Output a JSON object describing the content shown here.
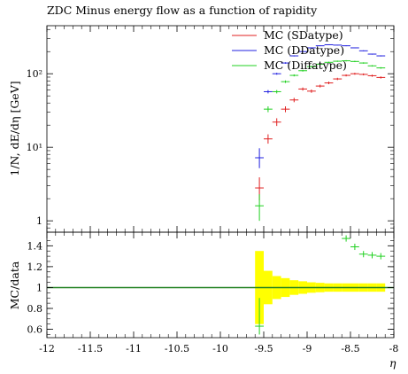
{
  "chart_data": {
    "type": "scatter",
    "title": "ZDC Minus energy flow as a function of rapidity",
    "xlabel": "η",
    "xlim": [
      -12,
      -8
    ],
    "x_ticks": [
      -12,
      -11.5,
      -11,
      -10.5,
      -10,
      -9.5,
      -9,
      -8.5,
      -8
    ],
    "x_tick_labels": [
      "-12",
      "-11.5",
      "-11",
      "-10.5",
      "-10",
      "-9.5",
      "-9",
      "-8.5",
      "-8"
    ],
    "top": {
      "ylabel": "1/N, dE/dη [GeV]",
      "yscale": "log",
      "ylim": [
        0.7,
        450
      ],
      "y_ticks": [
        1,
        10,
        100
      ],
      "y_tick_labels": [
        "1",
        "10¹",
        "10²"
      ],
      "legend_position": "top-right",
      "bin_width": 0.1,
      "series": [
        {
          "name": "MC (SDatype)",
          "color": "#e02020",
          "x": [
            -9.55,
            -9.45,
            -9.35,
            -9.25,
            -9.15,
            -9.05,
            -8.95,
            -8.85,
            -8.75,
            -8.65,
            -8.55,
            -8.45,
            -8.35,
            -8.25,
            -8.15
          ],
          "y": [
            2.8,
            13,
            22,
            33,
            44,
            62,
            58,
            68,
            75,
            85,
            95,
            100,
            98,
            94,
            89
          ],
          "yerr_lo": [
            0.9,
            1.8,
            2.5,
            3,
            3,
            3,
            3,
            3,
            3,
            3,
            3,
            3,
            3,
            3,
            3
          ],
          "yerr_hi": [
            1.1,
            2.0,
            2.8,
            3,
            3,
            3,
            3,
            3,
            3,
            3,
            3,
            3,
            3,
            3,
            3
          ]
        },
        {
          "name": "MC (DDatype)",
          "color": "#2020e0",
          "x": [
            -9.55,
            -9.45,
            -9.35,
            -9.25,
            -9.15,
            -9.05,
            -8.95,
            -8.85,
            -8.75,
            -8.65,
            -8.55,
            -8.45,
            -8.35,
            -8.25,
            -8.15
          ],
          "y": [
            7.2,
            57,
            100,
            140,
            175,
            200,
            225,
            240,
            248,
            245,
            240,
            225,
            205,
            185,
            175
          ],
          "yerr_lo": [
            2,
            3,
            3,
            3,
            3,
            3,
            3,
            3,
            3,
            3,
            3,
            3,
            3,
            3,
            3
          ],
          "yerr_hi": [
            2.5,
            3,
            3,
            3,
            3,
            3,
            3,
            3,
            3,
            3,
            3,
            3,
            3,
            3,
            3
          ]
        },
        {
          "name": "MC (Diffatype)",
          "color": "#20d020",
          "x": [
            -9.55,
            -9.45,
            -9.35,
            -9.25,
            -9.15,
            -9.05,
            -8.95,
            -8.85,
            -8.75,
            -8.65,
            -8.55,
            -8.45,
            -8.35,
            -8.25,
            -8.15
          ],
          "y": [
            1.6,
            33,
            57,
            78,
            95,
            110,
            125,
            135,
            143,
            148,
            150,
            147,
            140,
            128,
            120
          ],
          "yerr_lo": [
            0.6,
            3,
            3,
            3,
            3,
            3,
            3,
            3,
            3,
            3,
            3,
            3,
            3,
            3,
            3
          ],
          "yerr_hi": [
            0.7,
            3,
            3,
            3,
            3,
            3,
            3,
            3,
            3,
            3,
            3,
            3,
            3,
            3,
            3
          ]
        }
      ]
    },
    "bottom": {
      "ylabel": "MC/data",
      "ylim": [
        0.52,
        1.53
      ],
      "y_ticks": [
        0.6,
        0.8,
        1,
        1.2,
        1.4
      ],
      "y_tick_labels": [
        "0.6",
        "0.8",
        "1",
        "1.2",
        "1.4"
      ],
      "reference_line": 1.0,
      "reference_color": "#208020",
      "band_color": "#ffff00",
      "band": {
        "x_lo": [
          -9.6,
          -9.5,
          -9.4,
          -9.3,
          -9.2,
          -9.1,
          -9.0,
          -8.9,
          -8.8,
          -8.7,
          -8.6,
          -8.5,
          -8.4,
          -8.3,
          -8.2
        ],
        "x_hi": [
          -9.5,
          -9.4,
          -9.3,
          -9.2,
          -9.1,
          -9.0,
          -8.9,
          -8.8,
          -8.7,
          -8.6,
          -8.5,
          -8.4,
          -8.3,
          -8.2,
          -8.1
        ],
        "lo": [
          0.65,
          0.84,
          0.89,
          0.91,
          0.93,
          0.94,
          0.95,
          0.955,
          0.96,
          0.96,
          0.96,
          0.96,
          0.96,
          0.96,
          0.96
        ],
        "hi": [
          1.35,
          1.16,
          1.11,
          1.09,
          1.07,
          1.06,
          1.05,
          1.045,
          1.04,
          1.04,
          1.04,
          1.04,
          1.04,
          1.04,
          1.04
        ]
      },
      "series": [
        {
          "color": "#20d020",
          "x": [
            -9.55,
            -8.55,
            -8.45,
            -8.35,
            -8.25,
            -8.15
          ],
          "y": [
            0.63,
            1.47,
            1.39,
            1.32,
            1.31,
            1.3
          ],
          "yerr_lo": [
            0.08,
            0.03,
            0.03,
            0.03,
            0.03,
            0.03
          ],
          "yerr_hi": [
            0.27,
            0.03,
            0.03,
            0.03,
            0.03,
            0.03
          ]
        }
      ]
    }
  }
}
